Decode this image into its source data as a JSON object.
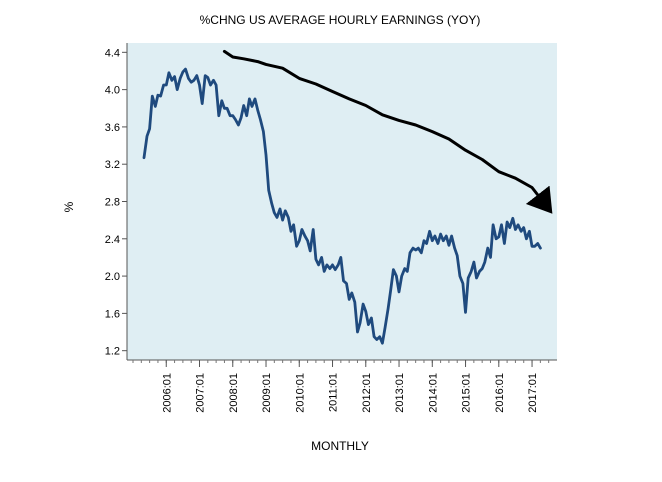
{
  "chart_data": {
    "type": "line",
    "title": "%CHNG US AVERAGE HOURLY EARNINGS (YOY)",
    "xlabel": "MONTHLY",
    "ylabel": "%",
    "ylim": [
      1.1,
      4.5
    ],
    "yticks": [
      "1.2",
      "1.6",
      "2.0",
      "2.4",
      "2.8",
      "3.2",
      "3.6",
      "4.0",
      "4.4"
    ],
    "xticks": [
      "2006:01",
      "2007:01",
      "2008:01",
      "2009:01",
      "2010:01",
      "2011:01",
      "2012:01",
      "2013:01",
      "2014:01",
      "2015:01",
      "2016:01",
      "2017:01"
    ],
    "plot_background": "#dfeef3",
    "grid": false,
    "series": [
      {
        "color": "#1f4a7e",
        "points": [
          [
            2005.33,
            3.27
          ],
          [
            2005.42,
            3.5
          ],
          [
            2005.5,
            3.58
          ],
          [
            2005.58,
            3.93
          ],
          [
            2005.67,
            3.82
          ],
          [
            2005.75,
            3.94
          ],
          [
            2005.83,
            3.93
          ],
          [
            2005.92,
            4.05
          ],
          [
            2006.0,
            4.05
          ],
          [
            2006.08,
            4.18
          ],
          [
            2006.17,
            4.1
          ],
          [
            2006.25,
            4.14
          ],
          [
            2006.33,
            4.0
          ],
          [
            2006.42,
            4.12
          ],
          [
            2006.5,
            4.19
          ],
          [
            2006.58,
            4.22
          ],
          [
            2006.67,
            4.12
          ],
          [
            2006.75,
            4.08
          ],
          [
            2006.83,
            4.1
          ],
          [
            2006.92,
            4.15
          ],
          [
            2007.0,
            4.05
          ],
          [
            2007.08,
            3.85
          ],
          [
            2007.17,
            4.15
          ],
          [
            2007.25,
            4.13
          ],
          [
            2007.33,
            4.05
          ],
          [
            2007.42,
            4.1
          ],
          [
            2007.5,
            4.05
          ],
          [
            2007.58,
            3.72
          ],
          [
            2007.67,
            3.88
          ],
          [
            2007.75,
            3.8
          ],
          [
            2007.83,
            3.8
          ],
          [
            2007.92,
            3.72
          ],
          [
            2008.0,
            3.72
          ],
          [
            2008.08,
            3.68
          ],
          [
            2008.17,
            3.62
          ],
          [
            2008.25,
            3.7
          ],
          [
            2008.33,
            3.83
          ],
          [
            2008.42,
            3.72
          ],
          [
            2008.5,
            3.9
          ],
          [
            2008.58,
            3.82
          ],
          [
            2008.67,
            3.9
          ],
          [
            2008.75,
            3.78
          ],
          [
            2008.83,
            3.68
          ],
          [
            2008.92,
            3.55
          ],
          [
            2009.0,
            3.3
          ],
          [
            2009.08,
            2.92
          ],
          [
            2009.17,
            2.78
          ],
          [
            2009.25,
            2.68
          ],
          [
            2009.33,
            2.63
          ],
          [
            2009.42,
            2.72
          ],
          [
            2009.5,
            2.6
          ],
          [
            2009.58,
            2.7
          ],
          [
            2009.67,
            2.63
          ],
          [
            2009.75,
            2.48
          ],
          [
            2009.83,
            2.55
          ],
          [
            2009.92,
            2.32
          ],
          [
            2010.0,
            2.38
          ],
          [
            2010.08,
            2.5
          ],
          [
            2010.17,
            2.43
          ],
          [
            2010.25,
            2.38
          ],
          [
            2010.33,
            2.27
          ],
          [
            2010.42,
            2.5
          ],
          [
            2010.5,
            2.18
          ],
          [
            2010.58,
            2.12
          ],
          [
            2010.67,
            2.2
          ],
          [
            2010.75,
            2.05
          ],
          [
            2010.83,
            2.12
          ],
          [
            2010.92,
            2.08
          ],
          [
            2011.0,
            2.12
          ],
          [
            2011.08,
            2.07
          ],
          [
            2011.17,
            2.12
          ],
          [
            2011.25,
            2.2
          ],
          [
            2011.33,
            1.95
          ],
          [
            2011.42,
            1.92
          ],
          [
            2011.5,
            1.75
          ],
          [
            2011.58,
            1.82
          ],
          [
            2011.67,
            1.72
          ],
          [
            2011.75,
            1.4
          ],
          [
            2011.83,
            1.5
          ],
          [
            2011.92,
            1.7
          ],
          [
            2012.0,
            1.62
          ],
          [
            2012.08,
            1.48
          ],
          [
            2012.17,
            1.55
          ],
          [
            2012.25,
            1.35
          ],
          [
            2012.33,
            1.32
          ],
          [
            2012.42,
            1.35
          ],
          [
            2012.5,
            1.28
          ],
          [
            2012.58,
            1.45
          ],
          [
            2012.67,
            1.65
          ],
          [
            2012.75,
            1.85
          ],
          [
            2012.83,
            2.07
          ],
          [
            2012.92,
            2.0
          ],
          [
            2013.0,
            1.83
          ],
          [
            2013.08,
            2.0
          ],
          [
            2013.17,
            2.08
          ],
          [
            2013.25,
            2.05
          ],
          [
            2013.33,
            2.25
          ],
          [
            2013.42,
            2.3
          ],
          [
            2013.5,
            2.28
          ],
          [
            2013.58,
            2.3
          ],
          [
            2013.67,
            2.25
          ],
          [
            2013.75,
            2.38
          ],
          [
            2013.83,
            2.35
          ],
          [
            2013.92,
            2.48
          ],
          [
            2014.0,
            2.38
          ],
          [
            2014.08,
            2.43
          ],
          [
            2014.17,
            2.35
          ],
          [
            2014.25,
            2.45
          ],
          [
            2014.33,
            2.38
          ],
          [
            2014.42,
            2.43
          ],
          [
            2014.5,
            2.33
          ],
          [
            2014.58,
            2.43
          ],
          [
            2014.67,
            2.3
          ],
          [
            2014.75,
            2.22
          ],
          [
            2014.83,
            2.0
          ],
          [
            2014.92,
            1.92
          ],
          [
            2015.0,
            1.61
          ],
          [
            2015.08,
            1.98
          ],
          [
            2015.17,
            2.05
          ],
          [
            2015.25,
            2.15
          ],
          [
            2015.33,
            1.98
          ],
          [
            2015.42,
            2.05
          ],
          [
            2015.5,
            2.08
          ],
          [
            2015.58,
            2.15
          ],
          [
            2015.67,
            2.3
          ],
          [
            2015.75,
            2.2
          ],
          [
            2015.83,
            2.55
          ],
          [
            2015.92,
            2.4
          ],
          [
            2016.0,
            2.42
          ],
          [
            2016.08,
            2.55
          ],
          [
            2016.17,
            2.35
          ],
          [
            2016.25,
            2.58
          ],
          [
            2016.33,
            2.52
          ],
          [
            2016.42,
            2.62
          ],
          [
            2016.5,
            2.5
          ],
          [
            2016.58,
            2.55
          ],
          [
            2016.67,
            2.48
          ],
          [
            2016.75,
            2.52
          ],
          [
            2016.83,
            2.4
          ],
          [
            2016.92,
            2.48
          ],
          [
            2017.0,
            2.32
          ],
          [
            2017.08,
            2.32
          ],
          [
            2017.17,
            2.35
          ],
          [
            2017.25,
            2.3
          ]
        ]
      }
    ],
    "annotations": [
      {
        "type": "arrow",
        "color": "#000000",
        "points": [
          [
            2007.75,
            4.41
          ],
          [
            2008.0,
            4.35
          ],
          [
            2008.33,
            4.33
          ],
          [
            2008.75,
            4.3
          ],
          [
            2009.0,
            4.27
          ],
          [
            2009.5,
            4.23
          ],
          [
            2010.0,
            4.12
          ],
          [
            2010.5,
            4.06
          ],
          [
            2011.0,
            3.98
          ],
          [
            2011.5,
            3.9
          ],
          [
            2012.0,
            3.83
          ],
          [
            2012.5,
            3.73
          ],
          [
            2013.0,
            3.67
          ],
          [
            2013.5,
            3.62
          ],
          [
            2014.0,
            3.55
          ],
          [
            2014.5,
            3.47
          ],
          [
            2015.0,
            3.35
          ],
          [
            2015.5,
            3.25
          ],
          [
            2016.0,
            3.12
          ],
          [
            2016.5,
            3.05
          ],
          [
            2017.0,
            2.95
          ],
          [
            2017.5,
            2.72
          ]
        ]
      }
    ]
  }
}
